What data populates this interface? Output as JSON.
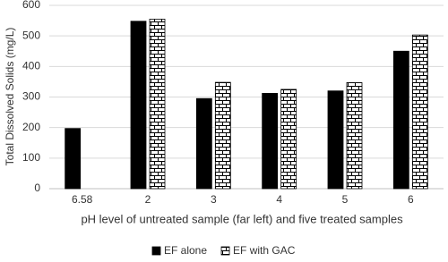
{
  "chart_data": {
    "type": "bar",
    "x_label": "pH level of untreated sample (far left) and five treated samples",
    "y_label": "Total Dissolved Solids (mg/L)",
    "categories": [
      "6.58",
      "2",
      "3",
      "4",
      "5",
      "6"
    ],
    "series": [
      {
        "name": "EF alone",
        "color": "#000000",
        "values": [
          197,
          548,
          295,
          312,
          320,
          450
        ]
      },
      {
        "name": "EF with GAC",
        "color": "brick-pattern",
        "values": [
          null,
          555,
          348,
          325,
          347,
          503
        ]
      }
    ],
    "ylim": [
      0,
      600
    ],
    "yticks": [
      0,
      100,
      200,
      300,
      400,
      500,
      600
    ],
    "grid": true,
    "legend": "bottom"
  }
}
